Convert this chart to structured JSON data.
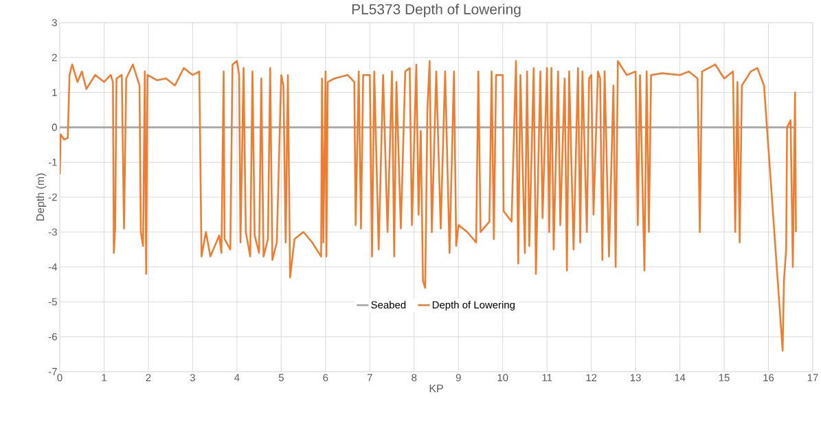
{
  "chart_data": {
    "type": "line",
    "title": "PL5373 Depth of Lowering",
    "xlabel": "KP",
    "ylabel": "Depth (m)",
    "xlim": [
      0,
      17
    ],
    "ylim": [
      -7,
      3
    ],
    "xticks": [
      0,
      1,
      2,
      3,
      4,
      5,
      6,
      7,
      8,
      9,
      10,
      11,
      12,
      13,
      14,
      15,
      16,
      17
    ],
    "yticks": [
      -7,
      -6,
      -5,
      -4,
      -3,
      -2,
      -1,
      0,
      1,
      2,
      3
    ],
    "grid": true,
    "legend": "bottom",
    "marker": "none",
    "line_style": "solid",
    "series": [
      {
        "name": "Seabed",
        "color": "#a5a5a5",
        "x": [
          0,
          16.6
        ],
        "values": [
          0,
          0
        ]
      },
      {
        "name": "Depth of Lowering",
        "color": "#ed7d31",
        "x": [
          0,
          0.02,
          0.1,
          0.18,
          0.22,
          0.28,
          0.4,
          0.5,
          0.6,
          0.8,
          1.0,
          1.15,
          1.2,
          1.22,
          1.25,
          1.28,
          1.4,
          1.45,
          1.5,
          1.65,
          1.8,
          1.83,
          1.88,
          1.92,
          1.95,
          1.98,
          2.2,
          2.4,
          2.6,
          2.8,
          3.0,
          3.15,
          3.2,
          3.3,
          3.4,
          3.6,
          3.65,
          3.7,
          3.72,
          3.85,
          3.9,
          4.0,
          4.05,
          4.08,
          4.15,
          4.2,
          4.3,
          4.35,
          4.4,
          4.5,
          4.55,
          4.6,
          4.7,
          4.75,
          4.8,
          4.9,
          5.0,
          5.05,
          5.1,
          5.15,
          5.2,
          5.3,
          5.5,
          5.7,
          5.9,
          5.92,
          5.95,
          6.0,
          6.02,
          6.05,
          6.2,
          6.5,
          6.65,
          6.68,
          6.75,
          6.8,
          6.85,
          7.0,
          7.05,
          7.1,
          7.2,
          7.3,
          7.4,
          7.5,
          7.55,
          7.6,
          7.7,
          7.8,
          7.9,
          7.95,
          8.05,
          8.1,
          8.15,
          8.2,
          8.25,
          8.3,
          8.35,
          8.4,
          8.5,
          8.6,
          8.7,
          8.8,
          8.9,
          8.95,
          9.0,
          9.2,
          9.4,
          9.45,
          9.5,
          9.7,
          9.75,
          9.8,
          9.85,
          10.0,
          10.02,
          10.2,
          10.3,
          10.35,
          10.4,
          10.5,
          10.55,
          10.6,
          10.7,
          10.75,
          10.85,
          10.9,
          11.0,
          11.05,
          11.1,
          11.15,
          11.25,
          11.3,
          11.4,
          11.45,
          11.5,
          11.6,
          11.7,
          11.75,
          11.8,
          11.9,
          11.95,
          12.0,
          12.05,
          12.15,
          12.2,
          12.25,
          12.3,
          12.4,
          12.5,
          12.55,
          12.6,
          12.8,
          13.0,
          13.05,
          13.1,
          13.2,
          13.25,
          13.3,
          13.35,
          13.6,
          14.0,
          14.2,
          14.4,
          14.45,
          14.5,
          14.8,
          15.0,
          15.2,
          15.25,
          15.3,
          15.35,
          15.4,
          15.6,
          15.75,
          15.9,
          16.32,
          16.35,
          16.4,
          16.42,
          16.5,
          16.55,
          16.6,
          16.62
        ],
        "values": [
          -1.35,
          -0.2,
          -0.35,
          -0.3,
          1.5,
          1.8,
          1.3,
          1.6,
          1.1,
          1.5,
          1.3,
          1.5,
          1.3,
          -3.6,
          -2.9,
          1.4,
          1.5,
          -2.9,
          1.4,
          1.8,
          1.2,
          -3.0,
          -3.4,
          1.6,
          -4.2,
          1.5,
          1.35,
          1.4,
          1.2,
          1.7,
          1.5,
          1.6,
          -3.7,
          -3.0,
          -3.7,
          -3.1,
          -3.6,
          1.6,
          -3.2,
          -3.5,
          1.8,
          1.9,
          1.5,
          -3.3,
          1.7,
          -3.0,
          -3.7,
          1.6,
          -3.1,
          -3.6,
          1.4,
          -3.7,
          -3.2,
          1.7,
          -3.8,
          -3.3,
          1.5,
          1.2,
          -3.3,
          1.5,
          -4.3,
          -3.2,
          -3.0,
          -3.3,
          -3.7,
          1.4,
          -3.3,
          1.6,
          -3.7,
          1.3,
          1.4,
          1.5,
          1.3,
          -2.8,
          1.6,
          -2.9,
          1.5,
          1.5,
          -3.7,
          1.6,
          -3.5,
          1.5,
          -3.0,
          1.6,
          -3.7,
          1.3,
          -2.9,
          1.6,
          1.7,
          -2.8,
          1.8,
          -2.5,
          -0.1,
          -4.4,
          -4.6,
          0.5,
          1.9,
          -3.0,
          1.6,
          -2.9,
          1.6,
          -3.6,
          1.6,
          -3.4,
          -2.8,
          -3.0,
          -3.3,
          1.6,
          -3.0,
          -2.7,
          1.6,
          -3.2,
          1.5,
          1.5,
          -2.4,
          -2.7,
          1.9,
          -3.9,
          1.5,
          -3.6,
          1.6,
          -3.4,
          1.7,
          -4.2,
          1.6,
          -2.6,
          1.7,
          -3.0,
          1.7,
          -3.5,
          1.6,
          -2.8,
          1.4,
          -4.1,
          1.6,
          -3.5,
          1.7,
          -3.3,
          1.6,
          -3.0,
          1.4,
          1.5,
          -2.5,
          1.6,
          1.4,
          -3.8,
          1.6,
          -3.7,
          1.2,
          -4.0,
          1.9,
          1.5,
          1.6,
          -2.8,
          1.5,
          -4.1,
          1.6,
          -3.0,
          1.5,
          1.55,
          1.5,
          1.6,
          1.4,
          -3.0,
          1.6,
          1.8,
          1.4,
          1.6,
          -3.0,
          1.3,
          -3.3,
          1.2,
          1.6,
          1.7,
          1.2,
          -6.4,
          -4.4,
          -3.5,
          0.0,
          0.2,
          -4.0,
          1.0,
          -3.0
        ]
      }
    ]
  }
}
